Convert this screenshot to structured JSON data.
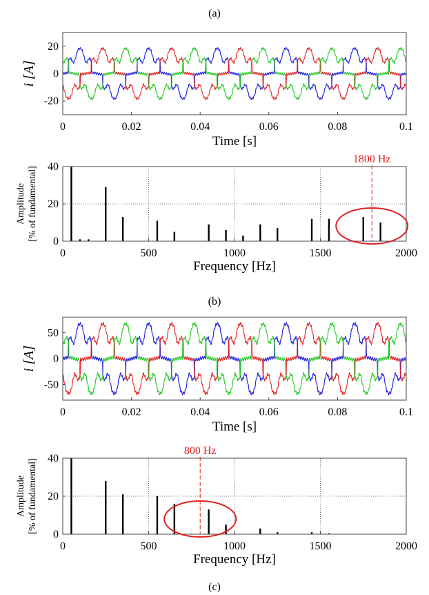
{
  "captions": {
    "a": "(a)",
    "b": "(b)",
    "c": "(c)"
  },
  "colors": {
    "phase_a": "#2020e0",
    "phase_b": "#e02020",
    "phase_c": "#20c820",
    "spectrum": "#000000",
    "highlight": "#e02020"
  },
  "chart_data": [
    {
      "type": "line",
      "xlabel": "Time [s]",
      "ylabel": "i [A]",
      "xlim": [
        0,
        0.1
      ],
      "ylim": [
        -30,
        30
      ],
      "xticks": [
        "0",
        "0.02",
        "0.04",
        "0.06",
        "0.08",
        "0.1"
      ],
      "yticks": [
        "20",
        "0",
        "-20"
      ],
      "grid": false,
      "fundamental_hz": 50,
      "approx_peak_a": 15,
      "series": [
        {
          "color": "#2020e0"
        },
        {
          "color": "#e02020"
        },
        {
          "color": "#20c820"
        }
      ]
    },
    {
      "type": "bar",
      "xlabel": "Frequency [Hz]",
      "ylabel": "Amplitude\n[% of fundamental]",
      "xlim": [
        0,
        2000
      ],
      "ylim": [
        0,
        40
      ],
      "xticks": [
        "0",
        "500",
        "1000",
        "1500",
        "2000"
      ],
      "yticks": [
        "40",
        "20",
        "0"
      ],
      "grid": true,
      "frequencies": [
        50,
        100,
        150,
        250,
        350,
        550,
        650,
        850,
        950,
        1050,
        1150,
        1250,
        1450,
        1550,
        1750,
        1850
      ],
      "values": [
        40,
        1,
        1,
        29,
        13,
        11,
        5,
        9,
        6,
        3,
        9,
        7,
        12,
        12,
        13,
        10
      ],
      "annotation": {
        "text": "1800 Hz",
        "x": 1800
      }
    },
    {
      "type": "line",
      "xlabel": "Time [s]",
      "ylabel": "i [A]",
      "xlim": [
        0,
        0.1
      ],
      "ylim": [
        -80,
        80
      ],
      "xticks": [
        "0",
        "0.02",
        "0.04",
        "0.06",
        "0.08",
        "0.1"
      ],
      "yticks": [
        "50",
        "0",
        "-50"
      ],
      "grid": false,
      "fundamental_hz": 50,
      "approx_peak_a": 55,
      "series": [
        {
          "color": "#2020e0"
        },
        {
          "color": "#e02020"
        },
        {
          "color": "#20c820"
        }
      ]
    },
    {
      "type": "bar",
      "xlabel": "Frequency [Hz]",
      "ylabel": "Amplitude\n[% of fundamental]",
      "xlim": [
        0,
        2000
      ],
      "ylim": [
        0,
        40
      ],
      "xticks": [
        "0",
        "500",
        "1000",
        "1500",
        "2000"
      ],
      "yticks": [
        "40",
        "20",
        "0"
      ],
      "grid": true,
      "frequencies": [
        50,
        250,
        350,
        550,
        650,
        850,
        950,
        1150,
        1250,
        1450,
        1550
      ],
      "values": [
        40,
        28,
        21,
        20,
        16,
        13,
        5,
        3,
        1,
        1,
        0.5
      ],
      "annotation": {
        "text": "800 Hz",
        "x": 800
      }
    }
  ]
}
